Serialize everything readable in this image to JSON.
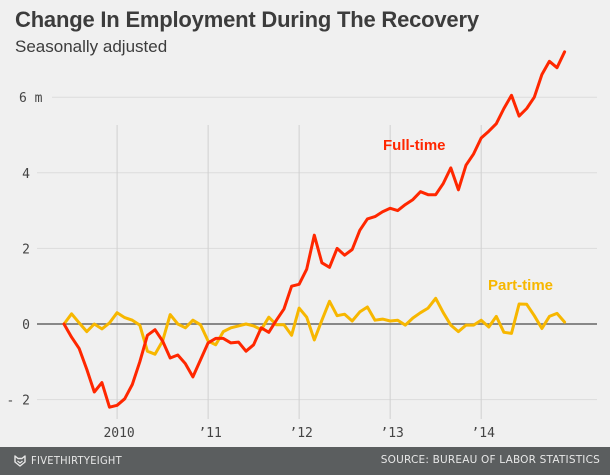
{
  "header": {
    "title": "Change In Employment During The Recovery",
    "subtitle": "Seasonally adjusted"
  },
  "footer": {
    "brand": "FIVETHIRTYEIGHT",
    "brand_icon": "fox-logo-icon",
    "source": "SOURCE: BUREAU OF LABOR STATISTICS"
  },
  "chart_data": {
    "type": "line",
    "title": "Change In Employment During The Recovery",
    "subtitle": "Seasonally adjusted",
    "xlabel": "",
    "ylabel": "",
    "x_start": "2009-06",
    "x_end": "2014-12",
    "x_frequency": "monthly",
    "x_ticks": [
      {
        "label": "2010",
        "month_index": 7
      },
      {
        "label": "’11",
        "month_index": 19
      },
      {
        "label": "’12",
        "month_index": 31
      },
      {
        "label": "’13",
        "month_index": 43
      },
      {
        "label": "’14",
        "month_index": 55
      }
    ],
    "y_ticks": [
      {
        "value": -2,
        "label": "- 2"
      },
      {
        "value": 0,
        "label": "0"
      },
      {
        "value": 2,
        "label": "2"
      },
      {
        "value": 4,
        "label": "4"
      },
      {
        "value": 6,
        "label": "6 m"
      }
    ],
    "ylim": [
      -2.4,
      7.4
    ],
    "unit": "millions",
    "grid": true,
    "series": [
      {
        "name": "Full-time",
        "color": "#ff2700",
        "values": [
          0,
          -0.35,
          -0.65,
          -1.2,
          -1.8,
          -1.55,
          -2.2,
          -2.15,
          -1.98,
          -1.6,
          -1.0,
          -0.3,
          -0.15,
          -0.45,
          -0.9,
          -0.82,
          -1.05,
          -1.4,
          -0.95,
          -0.5,
          -0.38,
          -0.38,
          -0.5,
          -0.48,
          -0.72,
          -0.55,
          -0.1,
          -0.22,
          0.1,
          0.4,
          1.0,
          1.05,
          1.45,
          2.35,
          1.62,
          1.5,
          2.0,
          1.82,
          1.97,
          2.48,
          2.78,
          2.84,
          2.97,
          3.06,
          3.0,
          3.16,
          3.29,
          3.5,
          3.42,
          3.42,
          3.72,
          4.13,
          3.55,
          4.2,
          4.5,
          4.92,
          5.1,
          5.3,
          5.7,
          6.05,
          5.5,
          5.7,
          6.0,
          6.6,
          6.95,
          6.78,
          7.2
        ]
      },
      {
        "name": "Part-time",
        "color": "#f7b700",
        "values": [
          0,
          0.27,
          0.03,
          -0.2,
          0,
          -0.13,
          0.03,
          0.3,
          0.17,
          0.1,
          -0.03,
          -0.72,
          -0.8,
          -0.45,
          0.25,
          0,
          -0.1,
          0.1,
          -0.02,
          -0.45,
          -0.55,
          -0.2,
          -0.1,
          -0.05,
          0,
          -0.05,
          -0.15,
          0.18,
          -0.02,
          -0.02,
          -0.3,
          0.42,
          0.18,
          -0.42,
          0.1,
          0.6,
          0.22,
          0.26,
          0.08,
          0.32,
          0.45,
          0.1,
          0.13,
          0.08,
          0.1,
          -0.03,
          0.16,
          0.3,
          0.42,
          0.68,
          0.3,
          -0.03,
          -0.2,
          -0.03,
          -0.03,
          0.1,
          -0.08,
          0.2,
          -0.22,
          -0.25,
          0.53,
          0.52,
          0.22,
          -0.12,
          0.2,
          0.28,
          0.05
        ]
      }
    ],
    "annotations": [
      {
        "text": "Full-time",
        "series": "Full-time",
        "color": "#ff2700"
      },
      {
        "text": "Part-time",
        "series": "Part-time",
        "color": "#f7b700"
      }
    ]
  }
}
